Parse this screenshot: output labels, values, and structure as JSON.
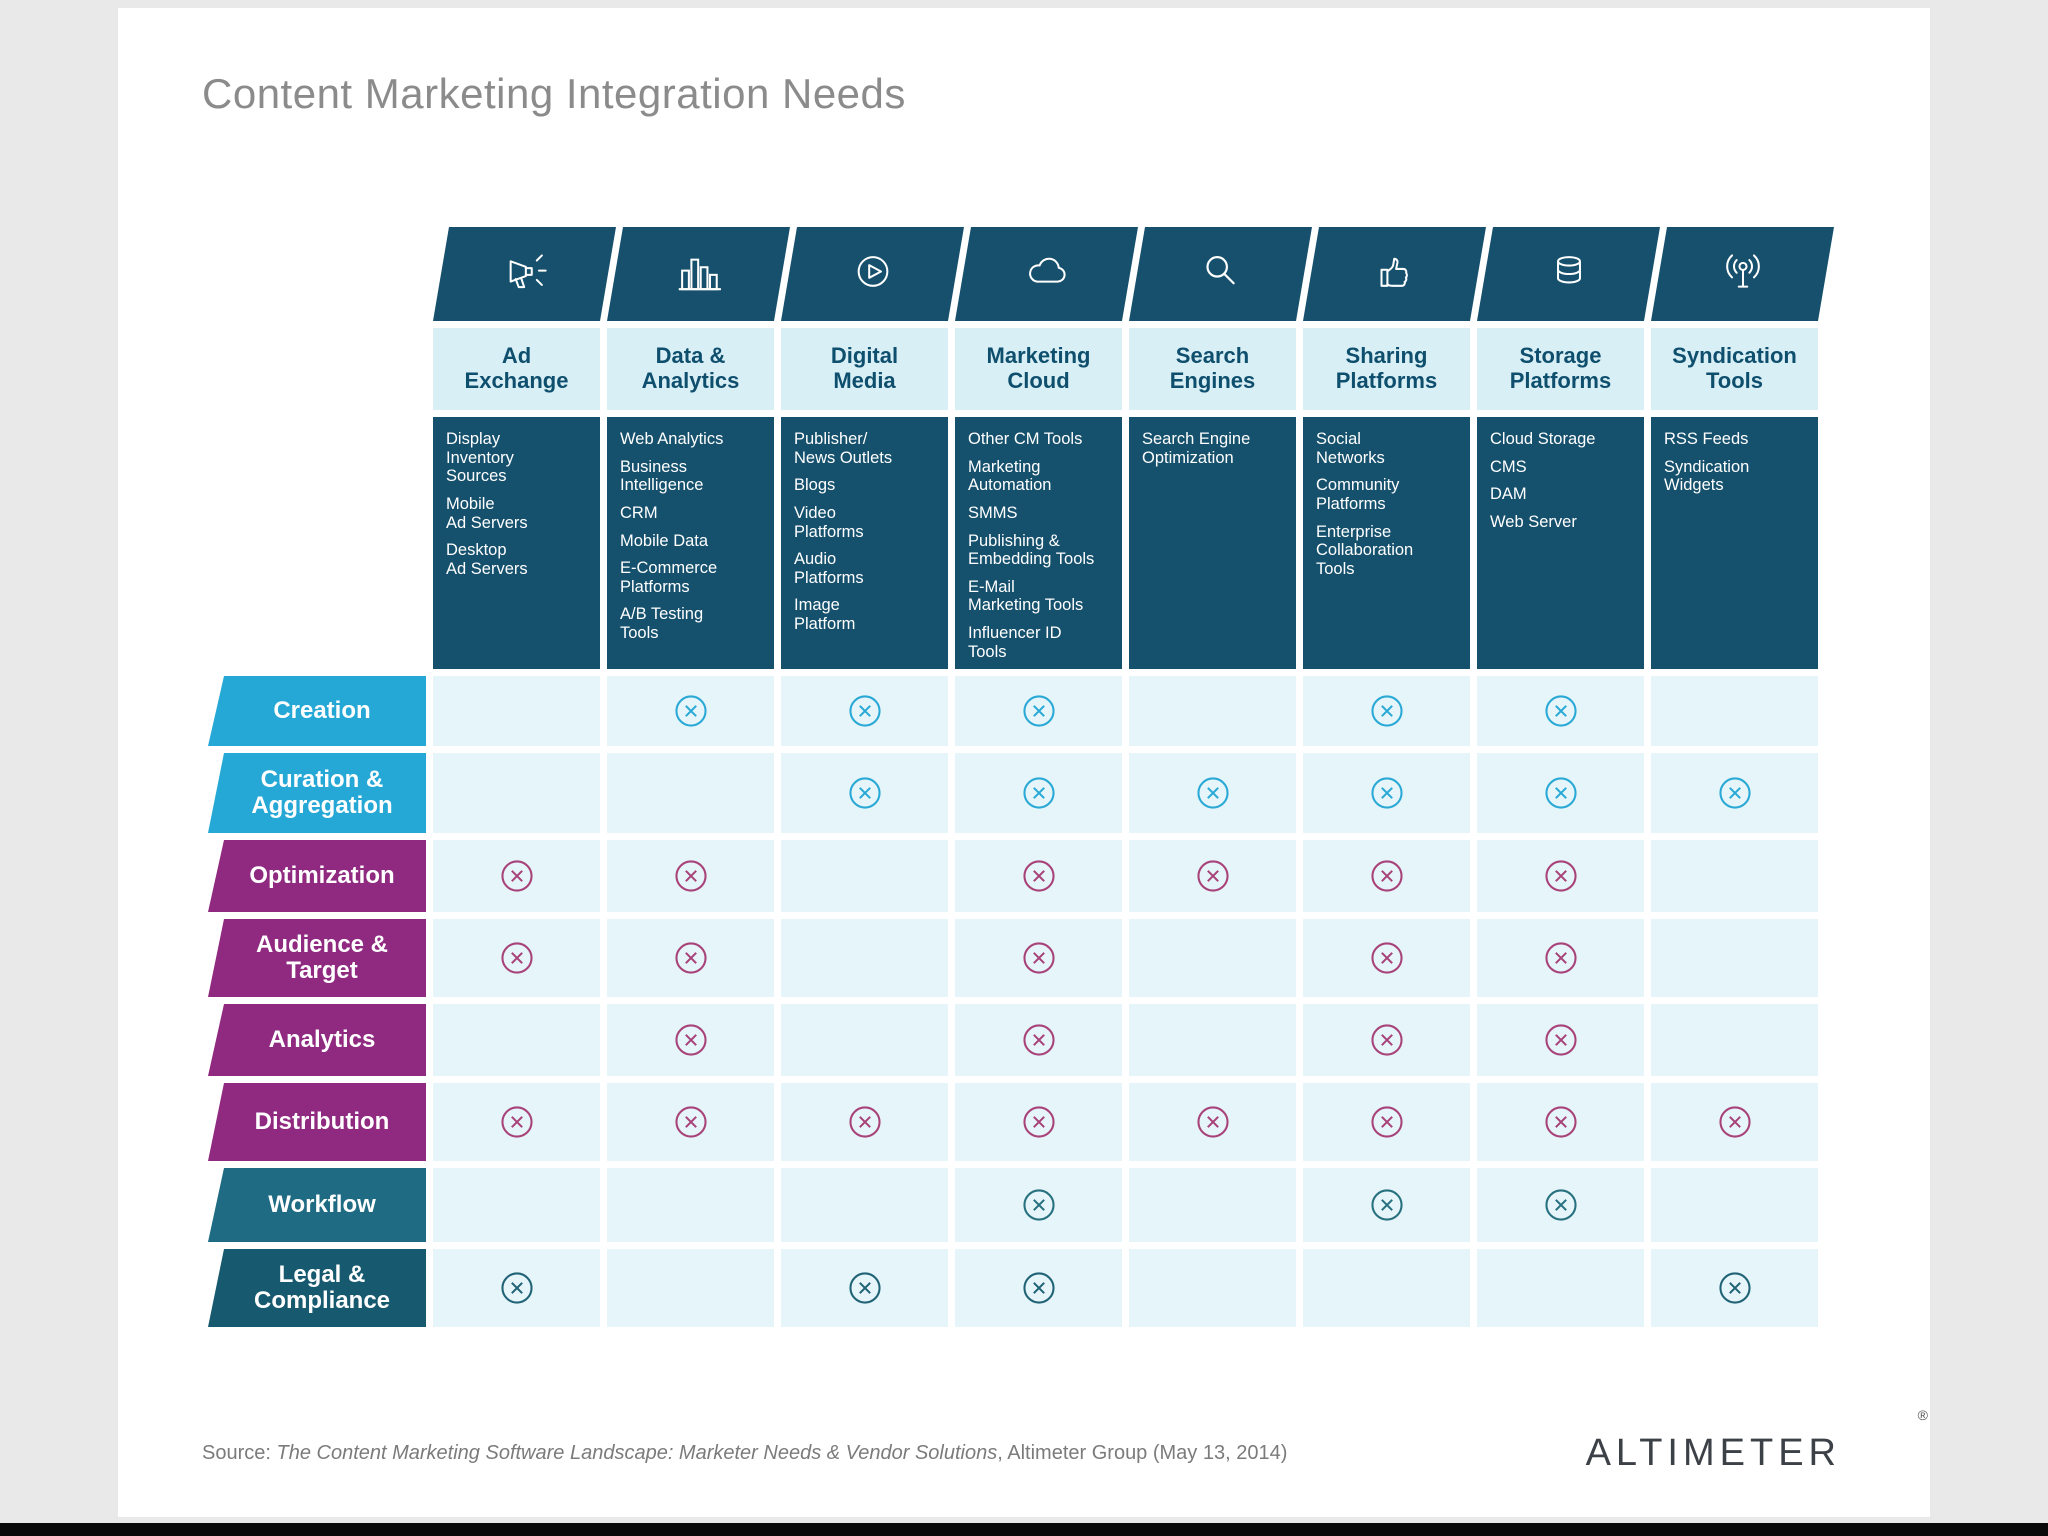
{
  "page": {
    "title": "Content Marketing Integration Needs",
    "source_prefix": "Source: ",
    "source_title": "The Content Marketing Software Landscape: Marketer Needs & Vendor Solutions",
    "source_suffix": ", Altimeter Group (May 13, 2014)",
    "brand": "ALTIMETER",
    "registered_mark": "®"
  },
  "chart_data": {
    "type": "table",
    "title": "Content Marketing Integration Needs",
    "legend_position": "none",
    "grid": "matrix of circled-x marks indicating integration need",
    "columns": [
      {
        "label": "Ad\nExchange",
        "icon": "megaphone-icon",
        "items": [
          "Display\nInventory\nSources",
          "Mobile\nAd Servers",
          "Desktop\nAd Servers"
        ]
      },
      {
        "label": "Data &\nAnalytics",
        "icon": "bar-chart-icon",
        "items": [
          "Web Analytics",
          "Business\nIntelligence",
          "CRM",
          "Mobile Data",
          "E-Commerce\nPlatforms",
          "A/B Testing\nTools"
        ]
      },
      {
        "label": "Digital\nMedia",
        "icon": "play-icon",
        "items": [
          "Publisher/\nNews Outlets",
          "Blogs",
          "Video\nPlatforms",
          "Audio\nPlatforms",
          "Image\nPlatform"
        ]
      },
      {
        "label": "Marketing\nCloud",
        "icon": "cloud-icon",
        "items": [
          "Other CM Tools",
          "Marketing\nAutomation",
          "SMMS",
          "Publishing &\nEmbedding Tools",
          "E-Mail\nMarketing Tools",
          "Influencer ID\nTools"
        ]
      },
      {
        "label": "Search\nEngines",
        "icon": "search-icon",
        "items": [
          "Search Engine\nOptimization"
        ]
      },
      {
        "label": "Sharing\nPlatforms",
        "icon": "thumbs-up-icon",
        "items": [
          "Social\nNetworks",
          "Community\nPlatforms",
          "Enterprise\nCollaboration\nTools"
        ]
      },
      {
        "label": "Storage\nPlatforms",
        "icon": "database-icon",
        "items": [
          "Cloud Storage",
          "CMS",
          "DAM",
          "Web Server"
        ]
      },
      {
        "label": "Syndication\nTools",
        "icon": "broadcast-icon",
        "items": [
          "RSS Feeds",
          "Syndication\nWidgets"
        ]
      }
    ],
    "rows": [
      {
        "label": "Creation",
        "group": "cyan",
        "marks": [
          0,
          1,
          1,
          1,
          0,
          1,
          1,
          0
        ]
      },
      {
        "label": "Curation &\nAggregation",
        "group": "cyan",
        "marks": [
          0,
          0,
          1,
          1,
          1,
          1,
          1,
          1
        ]
      },
      {
        "label": "Optimization",
        "group": "purple",
        "marks": [
          1,
          1,
          0,
          1,
          1,
          1,
          1,
          0
        ]
      },
      {
        "label": "Audience &\nTarget",
        "group": "purple",
        "marks": [
          1,
          1,
          0,
          1,
          0,
          1,
          1,
          0
        ]
      },
      {
        "label": "Analytics",
        "group": "purple",
        "marks": [
          0,
          1,
          0,
          1,
          0,
          1,
          1,
          0
        ]
      },
      {
        "label": "Distribution",
        "group": "purple",
        "marks": [
          1,
          1,
          1,
          1,
          1,
          1,
          1,
          1
        ]
      },
      {
        "label": "Workflow",
        "group": "teal",
        "marks": [
          0,
          0,
          0,
          1,
          0,
          1,
          1,
          0
        ]
      },
      {
        "label": "Legal &\nCompliance",
        "group": "darkteal",
        "marks": [
          1,
          0,
          1,
          1,
          0,
          0,
          0,
          1
        ]
      }
    ],
    "colors": {
      "header_dark": "#15506d",
      "header_light": "#d9eff6",
      "cell_bg": "#e6f5f9",
      "cyan": "#26a8d6",
      "purple": "#8f2a80",
      "purple_mark": "#a8437a",
      "teal": "#1e6b83",
      "dark_teal": "#17596f",
      "title_gray": "#8b8b8b"
    }
  }
}
